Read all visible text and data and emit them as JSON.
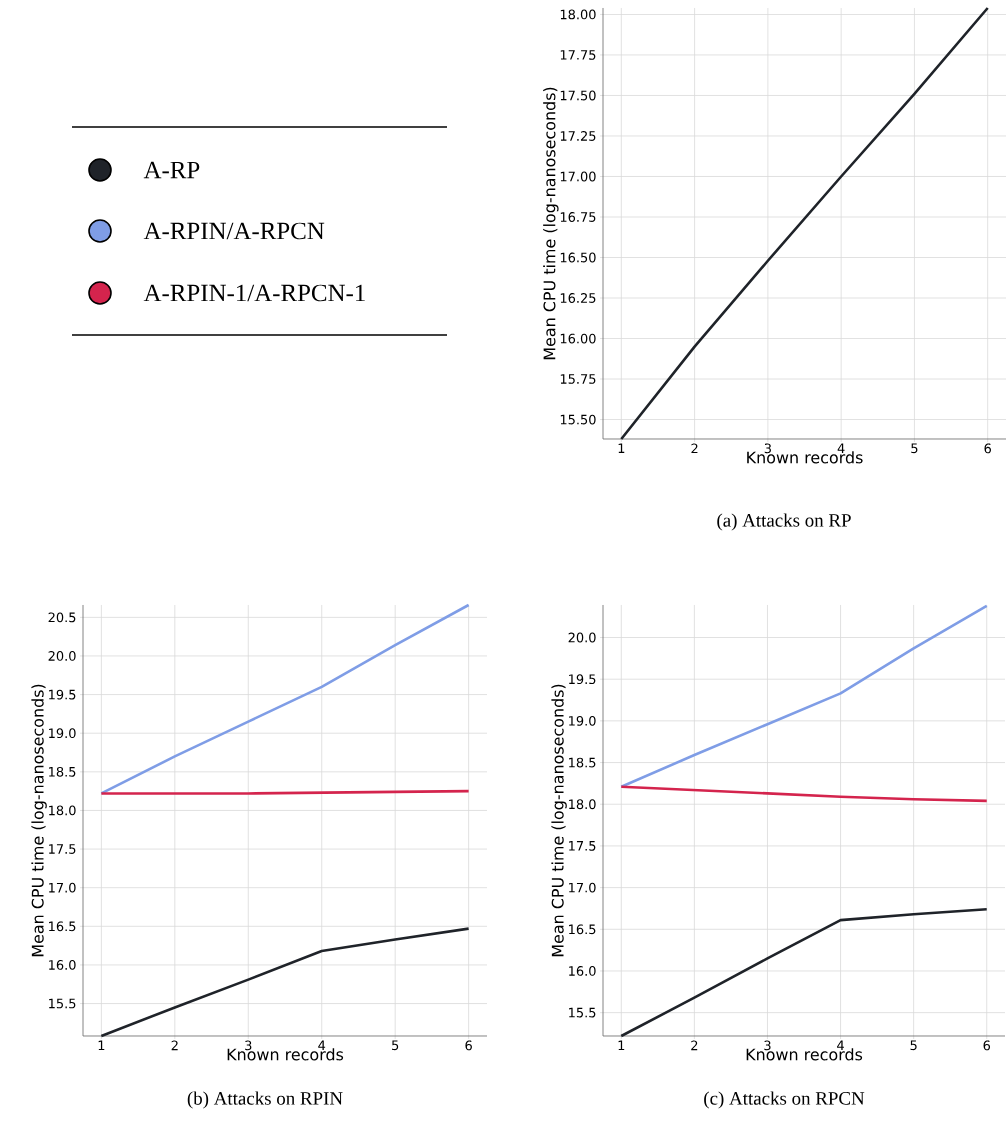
{
  "chart_data": [
    {
      "type": "line",
      "title": "(a) Attacks on RP",
      "xlabel": "Known records",
      "ylabel": "Mean CPU time (log-nanoseconds)",
      "x": [
        1,
        2,
        3,
        4,
        5,
        6
      ],
      "xlim": [
        0.75,
        6.25
      ],
      "ylim": [
        15.38,
        18.04
      ],
      "xticks": [
        1,
        2,
        3,
        4,
        5,
        6
      ],
      "yticks": [
        {
          "value": 15.5,
          "label": "15.50"
        },
        15.75,
        {
          "value": 16,
          "label": "16.00"
        },
        16.25,
        {
          "value": 16.5,
          "label": "16.50"
        },
        16.75,
        {
          "value": 17,
          "label": "17.00"
        },
        17.25,
        {
          "value": 17.5,
          "label": "17.50"
        },
        17.75,
        {
          "value": 18,
          "label": "18.00"
        }
      ],
      "grid": true,
      "marker": "none",
      "line_style": "solid",
      "series": [
        {
          "color": "#1f2329",
          "values": [
            15.38,
            15.95,
            16.48,
            17.0,
            17.51,
            18.04
          ]
        }
      ]
    },
    {
      "type": "line",
      "title": "(b) Attacks on RPIN",
      "xlabel": "Known records",
      "ylabel": "Mean CPU time (log-nanoseconds)",
      "x": [
        1,
        2,
        3,
        4,
        5,
        6
      ],
      "xlim": [
        0.75,
        6.25
      ],
      "ylim": [
        15.08,
        20.66
      ],
      "xticks": [
        1,
        2,
        3,
        4,
        5,
        6
      ],
      "yticks": [
        15.5,
        {
          "value": 16,
          "label": "16.0"
        },
        16.5,
        {
          "value": 17,
          "label": "17.0"
        },
        17.5,
        {
          "value": 18,
          "label": "18.0"
        },
        18.5,
        {
          "value": 19,
          "label": "19.0"
        },
        19.5,
        {
          "value": 20,
          "label": "20.0"
        },
        20.5
      ],
      "grid": true,
      "marker": "none",
      "line_style": "solid",
      "legend": "top left",
      "series": [
        {
          "name": "A-RP",
          "color": "#1f2329",
          "values": [
            15.08,
            15.45,
            15.81,
            16.18,
            16.33,
            16.47
          ]
        },
        {
          "name": "A-RPIN/A-RPCN",
          "color": "#7f9de6",
          "values": [
            18.22,
            18.7,
            19.15,
            19.6,
            20.14,
            20.66
          ]
        },
        {
          "name": "A-RPIN-1/A-RPCN-1",
          "color": "#d4244d",
          "values": [
            18.22,
            18.22,
            18.22,
            18.23,
            18.24,
            18.25
          ]
        }
      ]
    },
    {
      "type": "line",
      "title": "(c) Attacks on RPCN",
      "xlabel": "Known records",
      "ylabel": "Mean CPU time (log-nanoseconds)",
      "x": [
        1,
        2,
        3,
        4,
        5,
        6
      ],
      "xlim": [
        0.75,
        6.25
      ],
      "ylim": [
        15.22,
        20.39
      ],
      "xticks": [
        1,
        2,
        3,
        4,
        5,
        6
      ],
      "yticks": [
        15.5,
        {
          "value": 16,
          "label": "16.0"
        },
        16.5,
        {
          "value": 17,
          "label": "17.0"
        },
        17.5,
        {
          "value": 18,
          "label": "18.0"
        },
        18.5,
        {
          "value": 19,
          "label": "19.0"
        },
        19.5,
        {
          "value": 20,
          "label": "20.0"
        }
      ],
      "grid": true,
      "marker": "none",
      "line_style": "solid",
      "series": [
        {
          "color": "#1f2329",
          "values": [
            15.22,
            15.68,
            16.15,
            16.61,
            16.68,
            16.74
          ]
        },
        {
          "color": "#7f9de6",
          "values": [
            18.21,
            18.59,
            18.96,
            19.33,
            19.87,
            20.38
          ]
        },
        {
          "color": "#d4244d",
          "values": [
            18.21,
            18.17,
            18.13,
            18.09,
            18.06,
            18.04
          ]
        }
      ]
    }
  ]
}
